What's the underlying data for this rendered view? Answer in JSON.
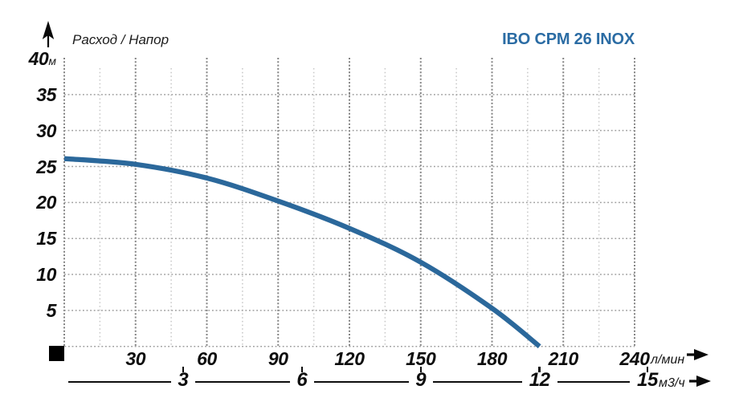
{
  "title": "IBO CPM 26 INOX",
  "y_axis_title": "Расход / Напор",
  "colors": {
    "curve": "#2b689b",
    "title": "#2b6ca4",
    "grid_major": "#838383",
    "grid_minor": "#c9c9c9",
    "grid_horizontal": "#9d9d9d",
    "text": "#0e0e0e"
  },
  "chart_data": {
    "type": "line",
    "title": "IBO CPM 26 INOX",
    "ylabel": "Расход / Напор",
    "y_unit": "м",
    "x_unit_primary": "л/мин",
    "x_unit_secondary": "м3/ч",
    "xlim_lmin": [
      0,
      240
    ],
    "ylim_m": [
      0,
      40
    ],
    "x_ticks_lmin": [
      30,
      60,
      90,
      120,
      150,
      180,
      210,
      240
    ],
    "x_minor_step_lmin": 15,
    "y_ticks_m": [
      5,
      10,
      15,
      20,
      25,
      30,
      35,
      40
    ],
    "x_ticks_m3h": [
      3,
      6,
      9,
      12,
      15
    ],
    "lmin_per_m3h": 16.6667,
    "grid": true,
    "legend_position": "none",
    "series": [
      {
        "name": "IBO CPM 26 INOX head curve",
        "x_lmin": [
          0,
          30,
          60,
          90,
          120,
          150,
          180,
          200
        ],
        "y_m": [
          26.1,
          25.3,
          23.4,
          20.2,
          16.4,
          11.7,
          5.3,
          0
        ]
      }
    ]
  }
}
